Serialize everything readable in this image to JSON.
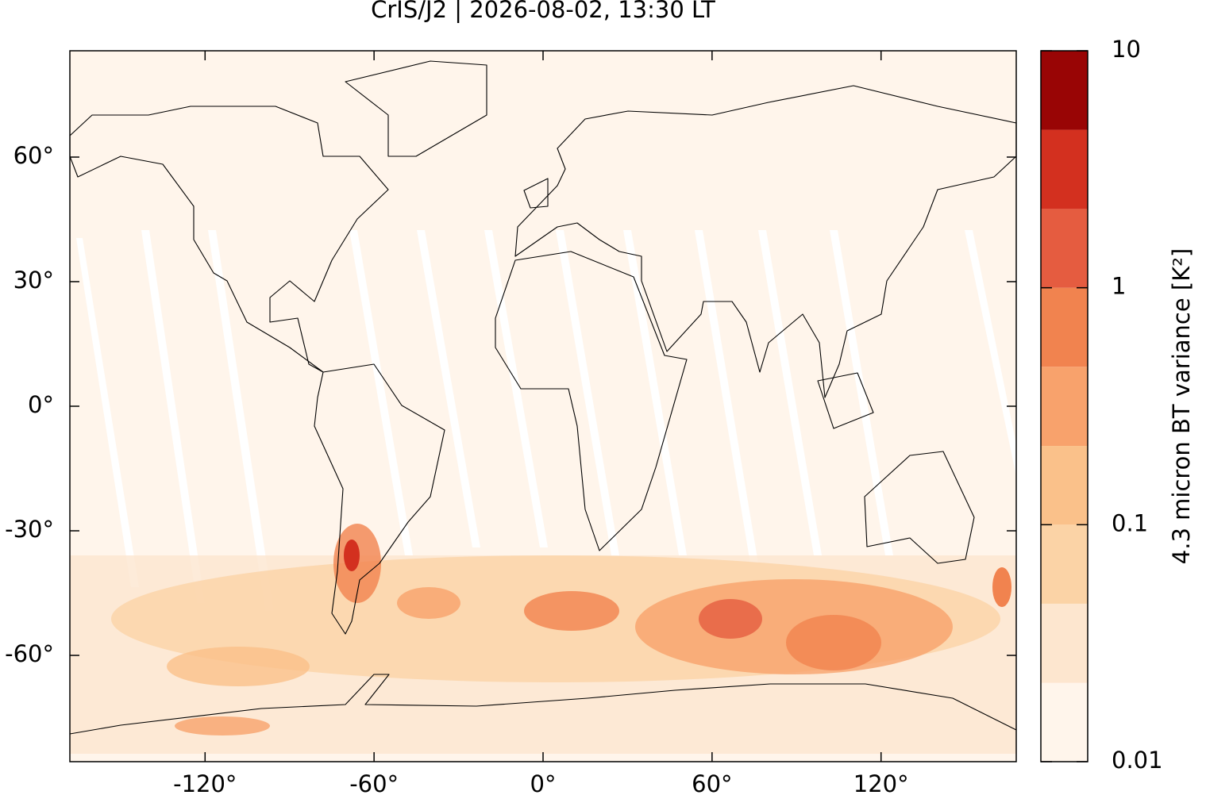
{
  "chart_data": {
    "type": "map",
    "title": "CrIS/J2 | 2026-08-02, 13:30 LT",
    "xlim": [
      -168,
      168
    ],
    "ylim": [
      -85.6,
      85.6
    ],
    "xticks": [
      {
        "value": -120,
        "label": "-120°"
      },
      {
        "value": -60,
        "label": "-60°"
      },
      {
        "value": 0,
        "label": "0°"
      },
      {
        "value": 60,
        "label": "60°"
      },
      {
        "value": 120,
        "label": "120°"
      }
    ],
    "yticks": [
      {
        "value": -60,
        "label": "-60°"
      },
      {
        "value": -30,
        "label": "-30°"
      },
      {
        "value": 0,
        "label": "0°"
      },
      {
        "value": 30,
        "label": "30°"
      },
      {
        "value": 60,
        "label": "60°"
      }
    ],
    "colorbar": {
      "label": "4.3 micron BT variance [K²]",
      "log_scale": true,
      "lim": [
        0.01,
        10
      ],
      "ticks": [
        0.01,
        0.1,
        1,
        10
      ],
      "levels": [
        0.01,
        0.0215,
        0.0464,
        0.1,
        0.215,
        0.464,
        1,
        2.15,
        4.64,
        10
      ],
      "colors": [
        "#fff5eb",
        "#fde6cf",
        "#fbd3a6",
        "#fac18a",
        "#f8a26c",
        "#f1834f",
        "#e55c40",
        "#d3301f",
        "#990505"
      ]
    }
  }
}
